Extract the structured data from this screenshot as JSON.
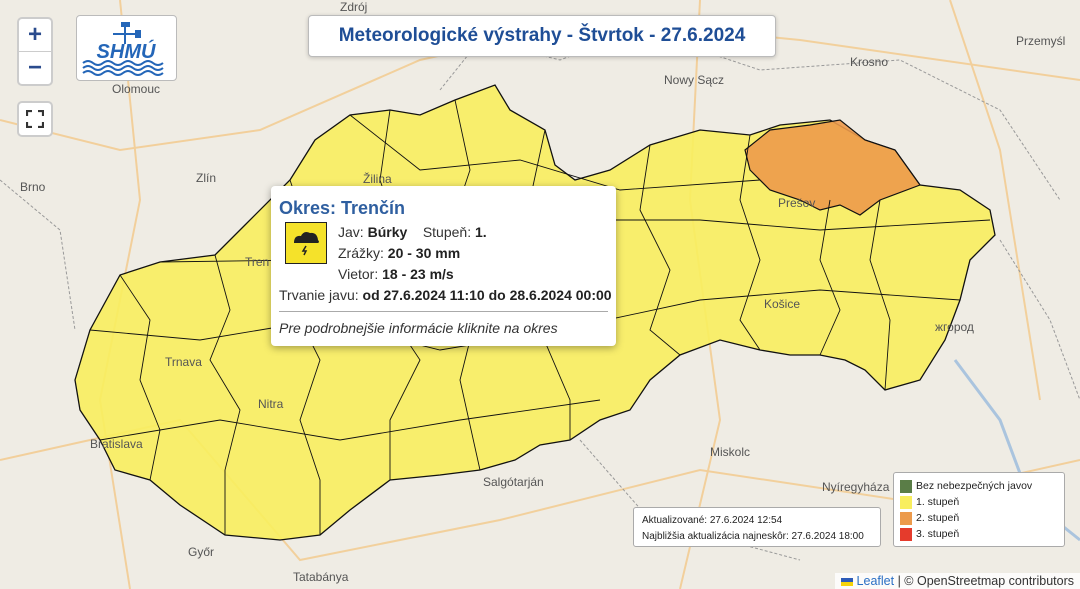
{
  "title": "Meteorologické výstrahy - Štvrtok - 27.6.2024",
  "logo": {
    "text": "SHMÚ"
  },
  "controls": {
    "zoom_in": "+",
    "zoom_out": "−",
    "fullscreen_icon": "fullscreen-icon"
  },
  "map_labels": [
    "Zdrój",
    "Olomouc",
    "Brno",
    "Zlín",
    "Žilina",
    "Nowy Sącz",
    "Krosno",
    "Przemyśl",
    "Prešov",
    "Košice",
    "жгород",
    "Trnava",
    "Nitra",
    "Bratislava",
    "Győr",
    "Tatabánya",
    "Salgótarján",
    "Miskolc",
    "Nyíregyháza",
    "Tren"
  ],
  "colors": {
    "level0": "#5a7d47",
    "level1": "#f8ee5e",
    "level2": "#ec9a4b",
    "level3": "#e53b2c",
    "title": "#1f4e96"
  },
  "popup": {
    "title": "Okres: Trenčín",
    "icon": "thunderstorm-icon",
    "jav_label": "Jav:",
    "jav_value": "Búrky",
    "stupen_label": "Stupeň:",
    "stupen_value": "1.",
    "zrazky_label": "Zrážky:",
    "zrazky_value": "20 - 30 mm",
    "vietor_label": "Vietor:",
    "vietor_value": "18 - 23 m/s",
    "trvanie_label": "Trvanie javu:",
    "trvanie_value": "od 27.6.2024 11:10 do 28.6.2024 00:00",
    "hint": "Pre podrobnejšie informácie kliknite na okres"
  },
  "info": {
    "updated": "Aktualizované: 27.6.2024 12:54",
    "next": "Najbližšia aktualizácia najneskôr: 27.6.2024 18:00"
  },
  "legend": [
    {
      "label": "Bez nebezpečných javov",
      "color": "#5a7d47"
    },
    {
      "label": "1. stupeň",
      "color": "#f8ee5e"
    },
    {
      "label": "2. stupeň",
      "color": "#ec9a4b"
    },
    {
      "label": "3. stupeň",
      "color": "#e53b2c"
    }
  ],
  "attribution": {
    "leaflet": "Leaflet",
    "rest": "| © OpenStreetmap contributors"
  }
}
